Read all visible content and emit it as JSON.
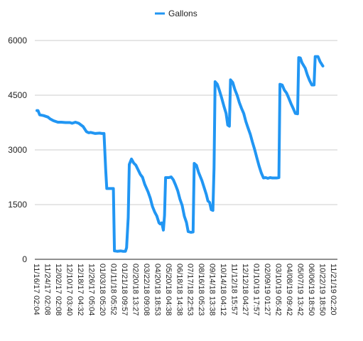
{
  "chart_data": {
    "type": "line",
    "title": "",
    "xlabel": "",
    "ylabel": "",
    "ylim": [
      0,
      6000
    ],
    "y_ticks": [
      0,
      1500,
      3000,
      4500,
      6000
    ],
    "grid": "horizontal",
    "legend_position": "top",
    "x_tick_labels": [
      "11/16/17 02:04",
      "11/24/17 02:08",
      "12/02/17 02:08",
      "12/10/17 03:40",
      "12/18/17 04:32",
      "12/26/17 05:04",
      "01/03/18 05:20",
      "01/11/18 05:52",
      "01/21/18 09:57",
      "02/20/18 13:27",
      "03/22/18 09:08",
      "04/20/18 18:53",
      "05/20/18 04:38",
      "06/18/18 14:38",
      "07/17/18 22:53",
      "08/16/18 05:23",
      "09/14/18 13:38",
      "10/14/18 04:12",
      "11/12/18 15:57",
      "12/12/18 04:27",
      "01/10/19 17:57",
      "02/09/19 01:27",
      "03/10/19 05:42",
      "04/08/19 09:42",
      "05/07/19 13:42",
      "06/06/19 18:50",
      "10/22/19 18:50",
      "11/21/19 02:20"
    ],
    "x_range": [
      0,
      27
    ],
    "series": [
      {
        "name": "Gallons",
        "color": "#2196F3",
        "points": [
          [
            0.0,
            4080
          ],
          [
            0.1,
            4080
          ],
          [
            0.25,
            3960
          ],
          [
            0.6,
            3940
          ],
          [
            1.0,
            3900
          ],
          [
            1.2,
            3850
          ],
          [
            1.5,
            3800
          ],
          [
            1.9,
            3760
          ],
          [
            2.2,
            3760
          ],
          [
            2.6,
            3750
          ],
          [
            3.0,
            3750
          ],
          [
            3.2,
            3730
          ],
          [
            3.5,
            3760
          ],
          [
            3.8,
            3730
          ],
          [
            4.2,
            3640
          ],
          [
            4.5,
            3500
          ],
          [
            4.7,
            3470
          ],
          [
            4.9,
            3480
          ],
          [
            5.3,
            3450
          ],
          [
            5.7,
            3460
          ],
          [
            5.9,
            3450
          ],
          [
            6.1,
            3450
          ],
          [
            6.25,
            2450
          ],
          [
            6.35,
            1940
          ],
          [
            6.7,
            1940
          ],
          [
            6.95,
            1940
          ],
          [
            7.05,
            230
          ],
          [
            7.3,
            220
          ],
          [
            7.6,
            230
          ],
          [
            7.8,
            220
          ],
          [
            8.05,
            220
          ],
          [
            8.15,
            320
          ],
          [
            8.3,
            1150
          ],
          [
            8.4,
            2600
          ],
          [
            8.6,
            2750
          ],
          [
            8.8,
            2640
          ],
          [
            9.0,
            2580
          ],
          [
            9.4,
            2330
          ],
          [
            9.6,
            2250
          ],
          [
            9.8,
            2060
          ],
          [
            10.1,
            1850
          ],
          [
            10.3,
            1680
          ],
          [
            10.5,
            1450
          ],
          [
            10.7,
            1300
          ],
          [
            10.9,
            1190
          ],
          [
            11.1,
            1000
          ],
          [
            11.2,
            970
          ],
          [
            11.35,
            1000
          ],
          [
            11.5,
            800
          ],
          [
            11.6,
            1200
          ],
          [
            11.7,
            2240
          ],
          [
            12.0,
            2240
          ],
          [
            12.2,
            2260
          ],
          [
            12.4,
            2180
          ],
          [
            12.6,
            2040
          ],
          [
            12.8,
            1880
          ],
          [
            13.0,
            1650
          ],
          [
            13.2,
            1480
          ],
          [
            13.4,
            1180
          ],
          [
            13.6,
            1010
          ],
          [
            13.75,
            760
          ],
          [
            14.0,
            740
          ],
          [
            14.2,
            750
          ],
          [
            14.3,
            2630
          ],
          [
            14.5,
            2580
          ],
          [
            14.7,
            2380
          ],
          [
            15.0,
            2160
          ],
          [
            15.2,
            1970
          ],
          [
            15.4,
            1780
          ],
          [
            15.55,
            1600
          ],
          [
            15.7,
            1560
          ],
          [
            15.85,
            1360
          ],
          [
            16.0,
            1340
          ],
          [
            16.1,
            2500
          ],
          [
            16.2,
            4870
          ],
          [
            16.4,
            4800
          ],
          [
            16.6,
            4620
          ],
          [
            16.8,
            4420
          ],
          [
            17.0,
            4200
          ],
          [
            17.2,
            4000
          ],
          [
            17.35,
            3680
          ],
          [
            17.5,
            3650
          ],
          [
            17.6,
            4920
          ],
          [
            17.8,
            4850
          ],
          [
            18.0,
            4650
          ],
          [
            18.2,
            4500
          ],
          [
            18.4,
            4300
          ],
          [
            18.6,
            4140
          ],
          [
            18.8,
            4000
          ],
          [
            19.0,
            3780
          ],
          [
            19.2,
            3600
          ],
          [
            19.4,
            3430
          ],
          [
            19.6,
            3210
          ],
          [
            19.8,
            3010
          ],
          [
            20.0,
            2780
          ],
          [
            20.2,
            2560
          ],
          [
            20.4,
            2370
          ],
          [
            20.6,
            2230
          ],
          [
            20.8,
            2240
          ],
          [
            21.0,
            2220
          ],
          [
            21.2,
            2240
          ],
          [
            21.4,
            2230
          ],
          [
            21.6,
            2230
          ],
          [
            21.8,
            2230
          ],
          [
            22.0,
            2240
          ],
          [
            22.1,
            4800
          ],
          [
            22.3,
            4780
          ],
          [
            22.5,
            4640
          ],
          [
            22.7,
            4560
          ],
          [
            22.9,
            4420
          ],
          [
            23.1,
            4270
          ],
          [
            23.3,
            4140
          ],
          [
            23.5,
            4000
          ],
          [
            23.7,
            3990
          ],
          [
            23.8,
            5530
          ],
          [
            23.95,
            5520
          ],
          [
            24.1,
            5390
          ],
          [
            24.4,
            5240
          ],
          [
            24.6,
            5050
          ],
          [
            24.8,
            4900
          ],
          [
            25.0,
            4780
          ],
          [
            25.2,
            4780
          ],
          [
            25.3,
            5560
          ],
          [
            25.55,
            5560
          ],
          [
            25.75,
            5420
          ],
          [
            26.0,
            5300
          ]
        ]
      }
    ]
  }
}
